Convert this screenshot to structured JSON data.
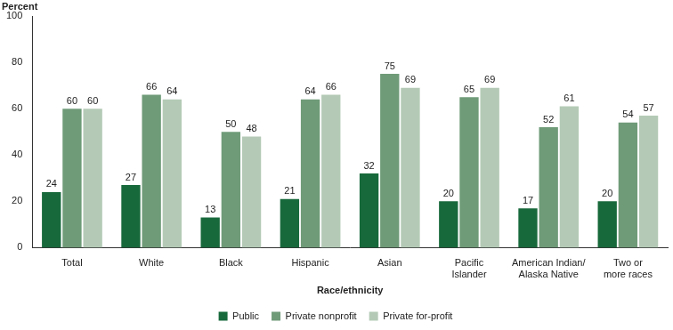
{
  "chart_data": {
    "type": "bar",
    "y_label": "Percent",
    "x_label": "Race/ethnicity",
    "categories": [
      "Total",
      "White",
      "Black",
      "Hispanic",
      "Asian",
      "Pacific Islander",
      "American Indian/Alaska Native",
      "Two or more races"
    ],
    "series": [
      {
        "name": "Public",
        "color": "#17693b",
        "values": [
          24,
          27,
          13,
          21,
          32,
          20,
          17,
          20
        ]
      },
      {
        "name": "Private nonprofit",
        "color": "#6f9b78",
        "values": [
          60,
          66,
          50,
          64,
          75,
          65,
          52,
          54
        ]
      },
      {
        "name": "Private for-profit",
        "color": "#b4cab6",
        "values": [
          60,
          64,
          48,
          66,
          69,
          69,
          61,
          57
        ]
      }
    ],
    "ylim": [
      0,
      100
    ],
    "yticks": [
      0,
      20,
      40,
      60,
      80,
      100
    ],
    "grid": false,
    "legend": "bottom",
    "data_labels": true
  }
}
